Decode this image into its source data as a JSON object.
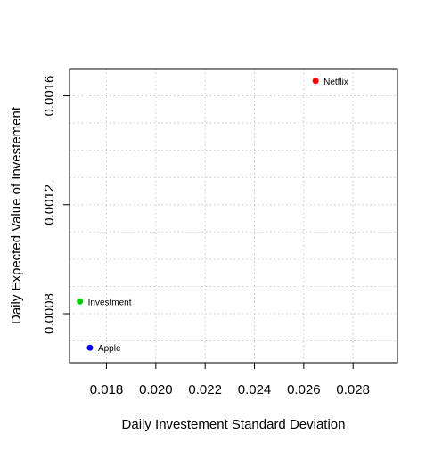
{
  "chart_data": {
    "type": "scatter",
    "title": "",
    "xlabel": "Daily Investement Standard Deviation",
    "ylabel": "Daily Expected Value of Investement",
    "xlim": [
      0.0165,
      0.0298
    ],
    "ylim": [
      0.00062,
      0.0017
    ],
    "xticks": [
      "0.018",
      "0.020",
      "0.022",
      "0.024",
      "0.026",
      "0.028"
    ],
    "yticks": [
      "0.0008",
      "0.0012",
      "0.0016"
    ],
    "grid": true,
    "points": [
      {
        "label": "Netflix",
        "x": 0.02648,
        "y": 0.001655,
        "color": "#ff0000"
      },
      {
        "label": "Investment",
        "x": 0.01692,
        "y": 0.000845,
        "color": "#00cc00"
      },
      {
        "label": "Apple",
        "x": 0.01733,
        "y": 0.000675,
        "color": "#0000ff"
      }
    ]
  }
}
